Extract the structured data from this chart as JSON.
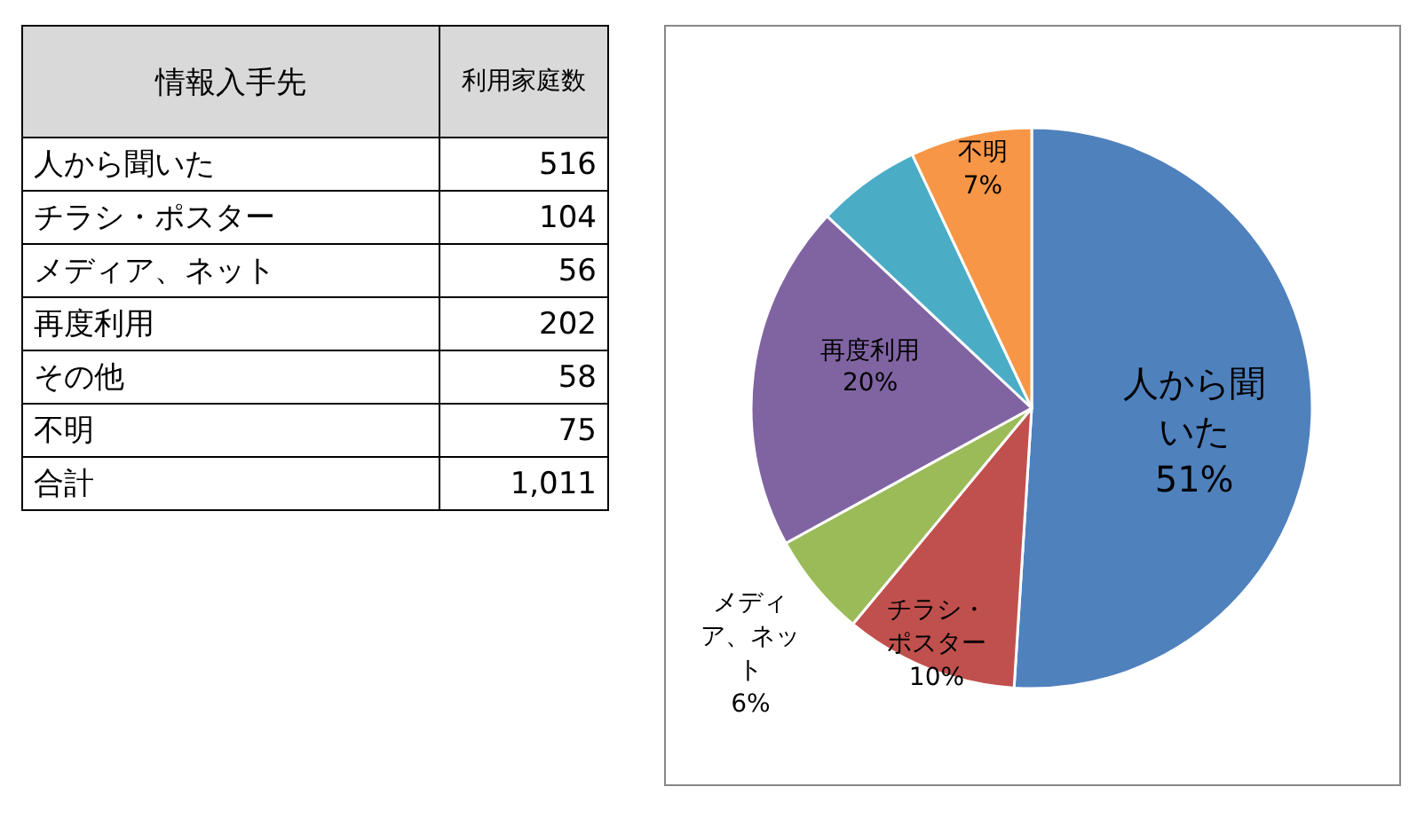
{
  "chart_data": [
    {
      "type": "other",
      "categories": [
        "人から聞いた",
        "チラシ・ポスター",
        "メディア、ネット",
        "再度利用",
        "その他",
        "不明"
      ],
      "values": [
        516,
        104,
        56,
        202,
        58,
        75
      ],
      "data_labels": true,
      "annotations": [
        "情報入手先",
        "利用家庭数",
        "合計",
        "1,011"
      ]
    },
    {
      "type": "pie",
      "categories": [
        "人から聞いた",
        "チラシ・ポスター",
        "メディア、ネット",
        "再度利用",
        null,
        "不明"
      ],
      "values": [
        51,
        10,
        6,
        20,
        6,
        7
      ],
      "colors": [
        "#4f81bd",
        "#c0504d",
        "#9bbb59",
        "#8064a2",
        "#4bacc6",
        "#f79646"
      ],
      "value_labels": [
        "51%",
        "10%",
        "6%",
        "20%",
        null,
        "7%"
      ]
    }
  ]
}
